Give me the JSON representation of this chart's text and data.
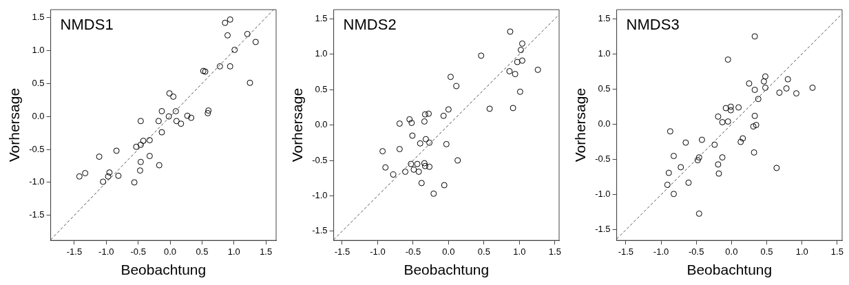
{
  "chart_data": [
    {
      "type": "scatter",
      "title": "NMDS1",
      "xlabel": "Beobachtung",
      "ylabel": "Vorhersage",
      "grid": false,
      "legend": false,
      "marker": "circle",
      "xlim": [
        -1.87,
        1.66
      ],
      "ylim": [
        -1.88,
        1.62
      ],
      "xticks": [
        {
          "value": -1.5,
          "label": "-1.5"
        },
        {
          "value": -1,
          "label": "-1.0"
        },
        {
          "value": -0.5,
          "label": "-0.5"
        },
        {
          "value": 0,
          "label": "0.0"
        },
        {
          "value": 0.5,
          "label": "0.5"
        },
        {
          "value": 1,
          "label": "1.0"
        },
        {
          "value": 1.5,
          "label": "1.5"
        }
      ],
      "yticks": [
        {
          "value": -1.5,
          "label": "-1.5"
        },
        {
          "value": -1,
          "label": "-1.0"
        },
        {
          "value": -0.5,
          "label": "-0.5"
        },
        {
          "value": 0,
          "label": "0.0"
        },
        {
          "value": 0.5,
          "label": "0.5"
        },
        {
          "value": 1,
          "label": "1.0"
        },
        {
          "value": 1.5,
          "label": "1.5"
        }
      ],
      "series": [
        {
          "color": "#000000",
          "x": [
            0.86,
            0.94,
            0.9,
            1.21,
            1.34,
            1.01,
            0.78,
            0.94,
            0.52,
            0.55,
            1.25,
            -0.01,
            0.05,
            -0.13,
            0.09,
            -0.02,
            0.6,
            0.59,
            0.27,
            0.33,
            0.1,
            0.17,
            -0.46,
            -0.18,
            -0.13,
            -0.32,
            -0.42,
            -0.46,
            -0.53,
            -0.84,
            -1.11,
            -0.32,
            -0.46,
            -0.17,
            -0.47,
            -1.42,
            -1.33,
            -0.95,
            -0.97,
            -0.81,
            -1.05,
            -0.56
          ],
          "values": [
            1.42,
            1.47,
            1.23,
            1.25,
            1.13,
            1.01,
            0.76,
            0.76,
            0.69,
            0.68,
            0.51,
            0.35,
            0.3,
            0.08,
            0.08,
            0.0,
            0.09,
            0.05,
            0.01,
            -0.02,
            -0.07,
            -0.11,
            -0.07,
            -0.07,
            -0.24,
            -0.36,
            -0.37,
            -0.43,
            -0.46,
            -0.52,
            -0.61,
            -0.6,
            -0.69,
            -0.74,
            -0.82,
            -0.91,
            -0.86,
            -0.85,
            -0.91,
            -0.9,
            -0.99,
            -1.0
          ]
        },
        {
          "type": "line",
          "color": "#555555",
          "marker": "none",
          "line_style": "dashed",
          "x": [
            -1.87,
            1.62
          ],
          "values": [
            -1.87,
            1.62
          ]
        }
      ]
    },
    {
      "type": "scatter",
      "title": "NMDS2",
      "xlabel": "Beobachtung",
      "ylabel": "Vorhersage",
      "grid": false,
      "legend": false,
      "marker": "circle",
      "xlim": [
        -1.62,
        1.56
      ],
      "ylim": [
        -1.63,
        1.63
      ],
      "xticks": [
        {
          "value": -1.5,
          "label": "-1.5"
        },
        {
          "value": -1,
          "label": "-1.0"
        },
        {
          "value": -0.5,
          "label": "-0.5"
        },
        {
          "value": 0,
          "label": "0.0"
        },
        {
          "value": 0.5,
          "label": "0.5"
        },
        {
          "value": 1,
          "label": "1.0"
        },
        {
          "value": 1.5,
          "label": "1.5"
        }
      ],
      "yticks": [
        {
          "value": -1.5,
          "label": "-1.5"
        },
        {
          "value": -1,
          "label": "-1.0"
        },
        {
          "value": -0.5,
          "label": "-0.5"
        },
        {
          "value": 0,
          "label": "0.0"
        },
        {
          "value": 0.5,
          "label": "0.5"
        },
        {
          "value": 1,
          "label": "1.0"
        },
        {
          "value": 1.5,
          "label": "1.5"
        }
      ],
      "series": [
        {
          "color": "#000000",
          "x": [
            0.87,
            1.04,
            1.02,
            0.46,
            0.97,
            1.04,
            1.26,
            0.86,
            0.94,
            0.03,
            0.11,
            1.01,
            0.58,
            0.91,
            0.0,
            -0.07,
            -0.33,
            -0.28,
            -0.34,
            -0.55,
            -0.52,
            -0.69,
            -0.51,
            -0.32,
            -0.4,
            -0.27,
            -0.03,
            -0.93,
            -0.69,
            0.13,
            -0.53,
            -0.44,
            -0.34,
            -0.33,
            -0.27,
            -0.89,
            -0.49,
            -0.42,
            -0.61,
            -0.78,
            -0.38,
            -0.06,
            -0.21
          ],
          "values": [
            1.32,
            1.15,
            1.06,
            0.98,
            0.89,
            0.91,
            0.78,
            0.76,
            0.72,
            0.68,
            0.55,
            0.47,
            0.23,
            0.24,
            0.22,
            0.13,
            0.15,
            0.16,
            0.05,
            0.08,
            0.03,
            0.02,
            -0.15,
            -0.2,
            -0.26,
            -0.25,
            -0.27,
            -0.37,
            -0.34,
            -0.5,
            -0.55,
            -0.55,
            -0.54,
            -0.58,
            -0.59,
            -0.6,
            -0.63,
            -0.66,
            -0.66,
            -0.7,
            -0.82,
            -0.85,
            -0.97
          ]
        },
        {
          "type": "line",
          "color": "#555555",
          "marker": "none",
          "line_style": "dashed",
          "x": [
            -1.62,
            1.56
          ],
          "values": [
            -1.62,
            1.56
          ]
        }
      ]
    },
    {
      "type": "scatter",
      "title": "NMDS3",
      "xlabel": "Beobachtung",
      "ylabel": "Vorhersage",
      "grid": false,
      "legend": false,
      "marker": "circle",
      "xlim": [
        -1.63,
        1.57
      ],
      "ylim": [
        -1.65,
        1.63
      ],
      "xticks": [
        {
          "value": -1.5,
          "label": "-1.5"
        },
        {
          "value": -1,
          "label": "-1.0"
        },
        {
          "value": -0.5,
          "label": "-0.5"
        },
        {
          "value": 0,
          "label": "0.0"
        },
        {
          "value": 0.5,
          "label": "0.5"
        },
        {
          "value": 1,
          "label": "1.0"
        },
        {
          "value": 1.5,
          "label": "1.5"
        }
      ],
      "yticks": [
        {
          "value": -1.5,
          "label": "-1.5"
        },
        {
          "value": -1,
          "label": "-1.0"
        },
        {
          "value": -0.5,
          "label": "-0.5"
        },
        {
          "value": 0,
          "label": "0.0"
        },
        {
          "value": 0.5,
          "label": "0.5"
        },
        {
          "value": 1,
          "label": "1.0"
        },
        {
          "value": 1.5,
          "label": "1.5"
        }
      ],
      "series": [
        {
          "color": "#000000",
          "x": [
            0.33,
            -0.05,
            0.48,
            0.46,
            0.8,
            0.25,
            0.33,
            0.48,
            0.78,
            1.15,
            0.68,
            0.92,
            0.38,
            -0.08,
            -0.01,
            -0.01,
            0.1,
            -0.19,
            -0.13,
            -0.05,
            0.33,
            0.31,
            0.35,
            -0.87,
            -0.42,
            -0.65,
            0.16,
            0.13,
            -0.24,
            0.32,
            -0.82,
            -0.13,
            -0.46,
            -0.48,
            -0.19,
            -0.72,
            0.64,
            -0.89,
            -0.18,
            -0.61,
            -0.91,
            -0.82,
            -0.46
          ],
          "values": [
            1.25,
            0.92,
            0.68,
            0.61,
            0.64,
            0.58,
            0.49,
            0.52,
            0.51,
            0.52,
            0.45,
            0.44,
            0.36,
            0.23,
            0.25,
            0.2,
            0.24,
            0.11,
            0.03,
            0.04,
            0.12,
            -0.03,
            -0.01,
            -0.1,
            -0.22,
            -0.26,
            -0.2,
            -0.25,
            -0.29,
            -0.4,
            -0.45,
            -0.47,
            -0.47,
            -0.51,
            -0.57,
            -0.61,
            -0.62,
            -0.69,
            -0.7,
            -0.83,
            -0.86,
            -0.99,
            -1.27
          ]
        },
        {
          "type": "line",
          "color": "#555555",
          "marker": "none",
          "line_style": "dashed",
          "x": [
            -1.63,
            1.57
          ],
          "values": [
            -1.63,
            1.57
          ]
        }
      ]
    }
  ]
}
